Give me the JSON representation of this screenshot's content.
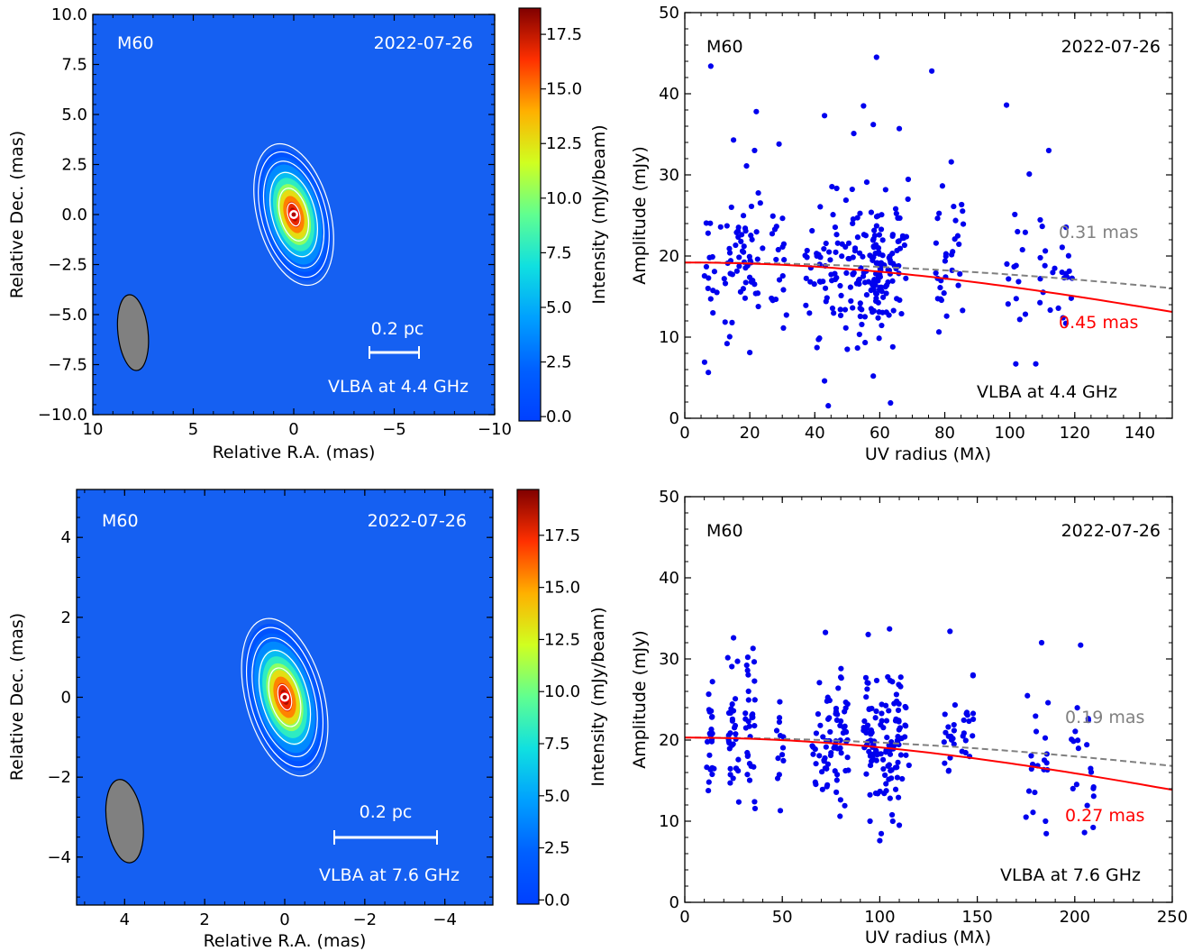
{
  "colors": {
    "map_background": "#1560f2",
    "points": "#0000ee",
    "fit_red": "#ff0000",
    "fit_gray": "#808080",
    "beam": "#808080"
  },
  "chart_data": [
    {
      "type": "heatmap",
      "source": "M60",
      "date": "2022-07-26",
      "scale_bar": "0.2 pc",
      "instrument": "VLBA at 4.4 GHz",
      "xlabel": "Relative R.A. (mas)",
      "ylabel": "Relative Dec. (mas)",
      "xlim": [
        10,
        -10
      ],
      "ylim": [
        -10,
        10
      ],
      "xticks": [
        "10",
        "5",
        "0",
        "−5",
        "−10"
      ],
      "yticks": [
        "10.0",
        "7.5",
        "5.0",
        "2.5",
        "0.0",
        "−2.5",
        "−5.0",
        "−7.5",
        "−10.0"
      ],
      "colorbar": {
        "label": "Intensity (mJy/beam)",
        "range": [
          -0.2,
          18.7
        ],
        "ticks": [
          "0.0",
          "2.5",
          "5.0",
          "7.5",
          "10.0",
          "12.5",
          "15.0",
          "17.5"
        ]
      },
      "peak_intensity": 18.6,
      "beam": {
        "ra": 8.0,
        "dec": -5.9,
        "major_mas": 3.8,
        "minor_mas": 1.5,
        "pa_deg": -6
      },
      "source_fit": {
        "ra": 0.0,
        "dec": 0.0,
        "major_mas": 2.6,
        "minor_mas": 1.3,
        "pa_deg": -15
      },
      "contour_levels_frac": [
        0.04,
        0.08,
        0.16,
        0.32,
        0.64,
        0.92
      ]
    },
    {
      "type": "scatter",
      "source": "M60",
      "date": "2022-07-26",
      "instrument": "VLBA at 4.4 GHz",
      "xlabel": "UV radius (Mλ)",
      "ylabel": "Amplitude (mJy)",
      "xlim": [
        0,
        150
      ],
      "ylim": [
        0,
        50
      ],
      "xticks": [
        "0",
        "20",
        "40",
        "60",
        "80",
        "100",
        "120",
        "140"
      ],
      "yticks": [
        "0",
        "10",
        "20",
        "30",
        "40",
        "50"
      ],
      "models": [
        {
          "name": "0.31 mas",
          "S0": 19.2,
          "fwhm_mas": 0.31,
          "style": "dashed",
          "color": "#808080"
        },
        {
          "name": "0.45 mas",
          "S0": 19.2,
          "fwhm_mas": 0.45,
          "style": "solid",
          "color": "#ff0000"
        }
      ],
      "clusters": [
        [
          8,
          2,
          18.5,
          4.2,
          16
        ],
        [
          15,
          4,
          19.5,
          4.5,
          30
        ],
        [
          21,
          3,
          20.5,
          4.2,
          26
        ],
        [
          29,
          3,
          18.5,
          3.8,
          18
        ],
        [
          42,
          5,
          18.5,
          4.2,
          40
        ],
        [
          50,
          4,
          18.5,
          4.2,
          40
        ],
        [
          57,
          4,
          18.5,
          4.5,
          60
        ],
        [
          62,
          4,
          19.5,
          4.2,
          55
        ],
        [
          67,
          2,
          21,
          3.5,
          14
        ],
        [
          79,
          2,
          18,
          3.8,
          18
        ],
        [
          84,
          2,
          20,
          3.8,
          14
        ],
        [
          102,
          3,
          18,
          4.2,
          14
        ],
        [
          112,
          3,
          18,
          3.6,
          12
        ],
        [
          119,
          3,
          18,
          3.5,
          12
        ]
      ],
      "extra_points": [
        [
          8,
          43.4
        ],
        [
          15,
          34.3
        ],
        [
          19,
          31.1
        ],
        [
          22,
          37.8
        ],
        [
          29,
          33.8
        ],
        [
          20,
          8.1
        ],
        [
          13,
          9.2
        ],
        [
          43,
          37.3
        ],
        [
          43,
          4.6
        ],
        [
          52,
          35.1
        ],
        [
          55,
          38.5
        ],
        [
          56,
          29.1
        ],
        [
          59,
          44.5
        ],
        [
          58,
          36.2
        ],
        [
          58,
          5.2
        ],
        [
          66,
          35.7
        ],
        [
          76,
          42.8
        ],
        [
          82,
          31.6
        ],
        [
          99,
          38.6
        ],
        [
          106,
          30.1
        ],
        [
          108,
          6.7
        ],
        [
          112,
          33.0
        ],
        [
          64,
          8.8
        ],
        [
          50,
          8.5
        ]
      ]
    },
    {
      "type": "heatmap",
      "source": "M60",
      "date": "2022-07-26",
      "scale_bar": "0.2 pc",
      "instrument": "VLBA at 7.6 GHz",
      "xlabel": "Relative R.A. (mas)",
      "ylabel": "Relative Dec. (mas)",
      "xlim": [
        5.2,
        -5.2
      ],
      "ylim": [
        -5.2,
        5.2
      ],
      "xticks": [
        "4",
        "2",
        "0",
        "−2",
        "−4"
      ],
      "yticks": [
        "4",
        "2",
        "0",
        "−2",
        "−4"
      ],
      "colorbar": {
        "label": "Intensity (mJy/beam)",
        "range": [
          -0.2,
          19.7
        ],
        "ticks": [
          "0.0",
          "2.5",
          "5.0",
          "7.5",
          "10.0",
          "12.5",
          "15.0",
          "17.5"
        ]
      },
      "peak_intensity": 19.5,
      "beam": {
        "ra": 4.0,
        "dec": -3.1,
        "major_mas": 2.1,
        "minor_mas": 0.9,
        "pa_deg": -8
      },
      "source_fit": {
        "ra": 0.0,
        "dec": 0.0,
        "major_mas": 1.45,
        "minor_mas": 0.7,
        "pa_deg": -15
      },
      "contour_levels_frac": [
        0.04,
        0.08,
        0.16,
        0.32,
        0.64,
        0.92
      ]
    },
    {
      "type": "scatter",
      "source": "M60",
      "date": "2022-07-26",
      "instrument": "VLBA at 7.6 GHz",
      "xlabel": "UV radius (Mλ)",
      "ylabel": "Amplitude (mJy)",
      "xlim": [
        0,
        250
      ],
      "ylim": [
        0,
        50
      ],
      "xticks": [
        "0",
        "50",
        "100",
        "150",
        "200",
        "250"
      ],
      "yticks": [
        "0",
        "10",
        "20",
        "30",
        "40",
        "50"
      ],
      "models": [
        {
          "name": "0.19 mas",
          "S0": 20.3,
          "fwhm_mas": 0.19,
          "style": "dashed",
          "color": "#808080"
        },
        {
          "name": "0.27 mas",
          "S0": 20.3,
          "fwhm_mas": 0.27,
          "style": "solid",
          "color": "#ff0000"
        }
      ],
      "clusters": [
        [
          13,
          2,
          20.5,
          4.2,
          22
        ],
        [
          25,
          3,
          21,
          4.5,
          32
        ],
        [
          34,
          3,
          21,
          4.2,
          30
        ],
        [
          49,
          2,
          19.5,
          3.8,
          12
        ],
        [
          70,
          5,
          19.5,
          4.5,
          36
        ],
        [
          80,
          4,
          20.5,
          4.2,
          40
        ],
        [
          95,
          4,
          20,
          4.2,
          46
        ],
        [
          105,
          5,
          19,
          4.5,
          60
        ],
        [
          112,
          3,
          21,
          4,
          14
        ],
        [
          136,
          3,
          20.5,
          3.5,
          16
        ],
        [
          145,
          3,
          20.5,
          3.5,
          16
        ],
        [
          178,
          3,
          17.5,
          4,
          10
        ],
        [
          185,
          2,
          17,
          4,
          8
        ],
        [
          200,
          2,
          18.5,
          3.8,
          8
        ],
        [
          208,
          2,
          17.5,
          4,
          10
        ]
      ],
      "extra_points": [
        [
          25,
          32.6
        ],
        [
          35,
          31.3
        ],
        [
          105,
          33.7
        ],
        [
          136,
          33.4
        ],
        [
          183,
          32.0
        ],
        [
          203,
          31.7
        ],
        [
          100,
          7.6
        ],
        [
          95,
          10.0
        ],
        [
          110,
          9.5
        ],
        [
          175,
          10.5
        ],
        [
          185,
          10.0
        ],
        [
          205,
          8.6
        ],
        [
          49,
          11.3
        ]
      ]
    }
  ]
}
